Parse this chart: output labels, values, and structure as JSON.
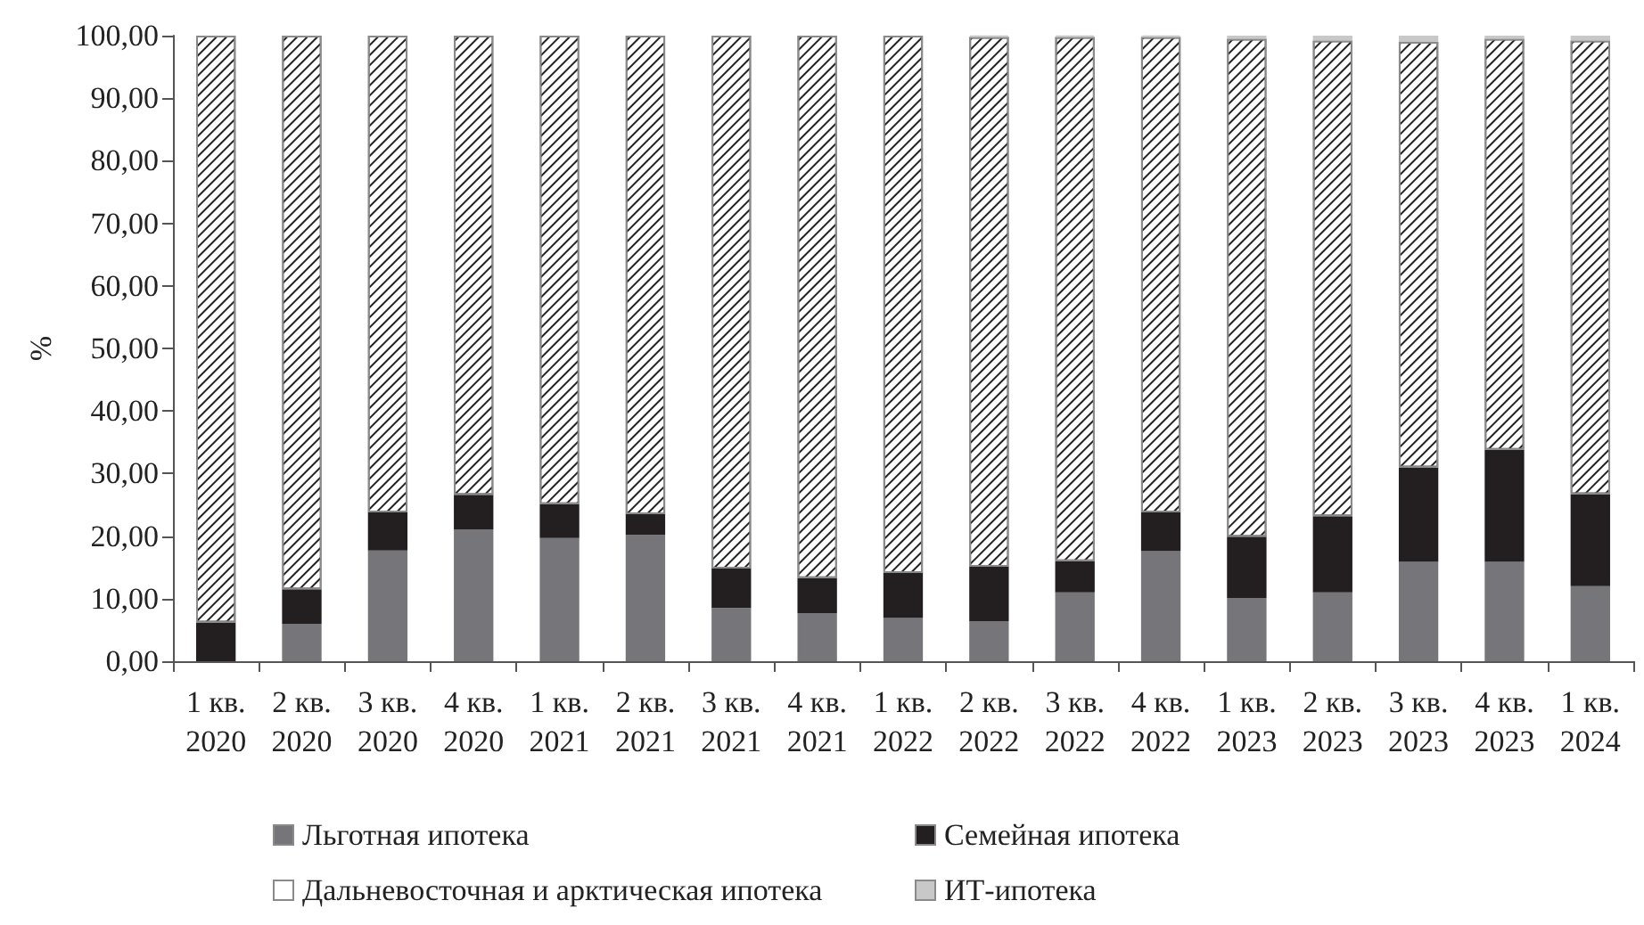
{
  "chart_data": {
    "type": "bar",
    "stacked": true,
    "ylabel": "%",
    "categories": [
      "1 кв. 2020",
      "2 кв. 2020",
      "3 кв. 2020",
      "4 кв. 2020",
      "1 кв. 2021",
      "2 кв. 2021",
      "3 кв. 2021",
      "4 кв. 2021",
      "1 кв. 2022",
      "2 кв. 2022",
      "3 кв. 2022",
      "4 кв. 2022",
      "1 кв. 2023",
      "2 кв. 2023",
      "3 кв. 2023",
      "4 кв. 2023",
      "1 кв. 2024"
    ],
    "series": [
      {
        "name": "Льготная ипотека",
        "color": "#76767a",
        "values": [
          0,
          6.0,
          17.7,
          21.1,
          19.7,
          20.2,
          8.5,
          7.7,
          6.9,
          6.4,
          11.0,
          17.6,
          10.1,
          11.0,
          15.9,
          15.9,
          12.0
        ]
      },
      {
        "name": "Семейная ипотека",
        "color": "#231f20",
        "values": [
          6.2,
          5.5,
          6.1,
          5.5,
          5.4,
          3.3,
          6.3,
          5.6,
          7.2,
          8.7,
          5.0,
          6.2,
          9.8,
          12.2,
          15.1,
          17.9,
          14.7
        ]
      },
      {
        "name": "Дальневосточная и арктическая ипотека",
        "color": "#ffffff",
        "values": [
          93.8,
          88.5,
          76.2,
          73.4,
          74.9,
          76.5,
          85.2,
          86.7,
          85.9,
          84.7,
          83.8,
          76.0,
          79.6,
          76.0,
          68.0,
          65.7,
          72.5
        ]
      },
      {
        "name": "ИТ-ипотека",
        "color": "#c8c8c8",
        "values": [
          0,
          0,
          0,
          0,
          0,
          0,
          0,
          0,
          0,
          0.2,
          0.2,
          0.2,
          0.5,
          0.8,
          1.0,
          0.5,
          0.8
        ]
      }
    ],
    "ylim": [
      0,
      100
    ],
    "yticks": [
      {
        "value": 0,
        "label": "0,00"
      },
      {
        "value": 10,
        "label": "10,00"
      },
      {
        "value": 20,
        "label": "20,00"
      },
      {
        "value": 30,
        "label": "30,00"
      },
      {
        "value": 40,
        "label": "40,00"
      },
      {
        "value": 50,
        "label": "50,00"
      },
      {
        "value": 60,
        "label": "60,00"
      },
      {
        "value": 70,
        "label": "70,00"
      },
      {
        "value": 80,
        "label": "80,00"
      },
      {
        "value": 90,
        "label": "90,00"
      },
      {
        "value": 100,
        "label": "100,00"
      }
    ],
    "grid": false,
    "legend": "bottom"
  }
}
